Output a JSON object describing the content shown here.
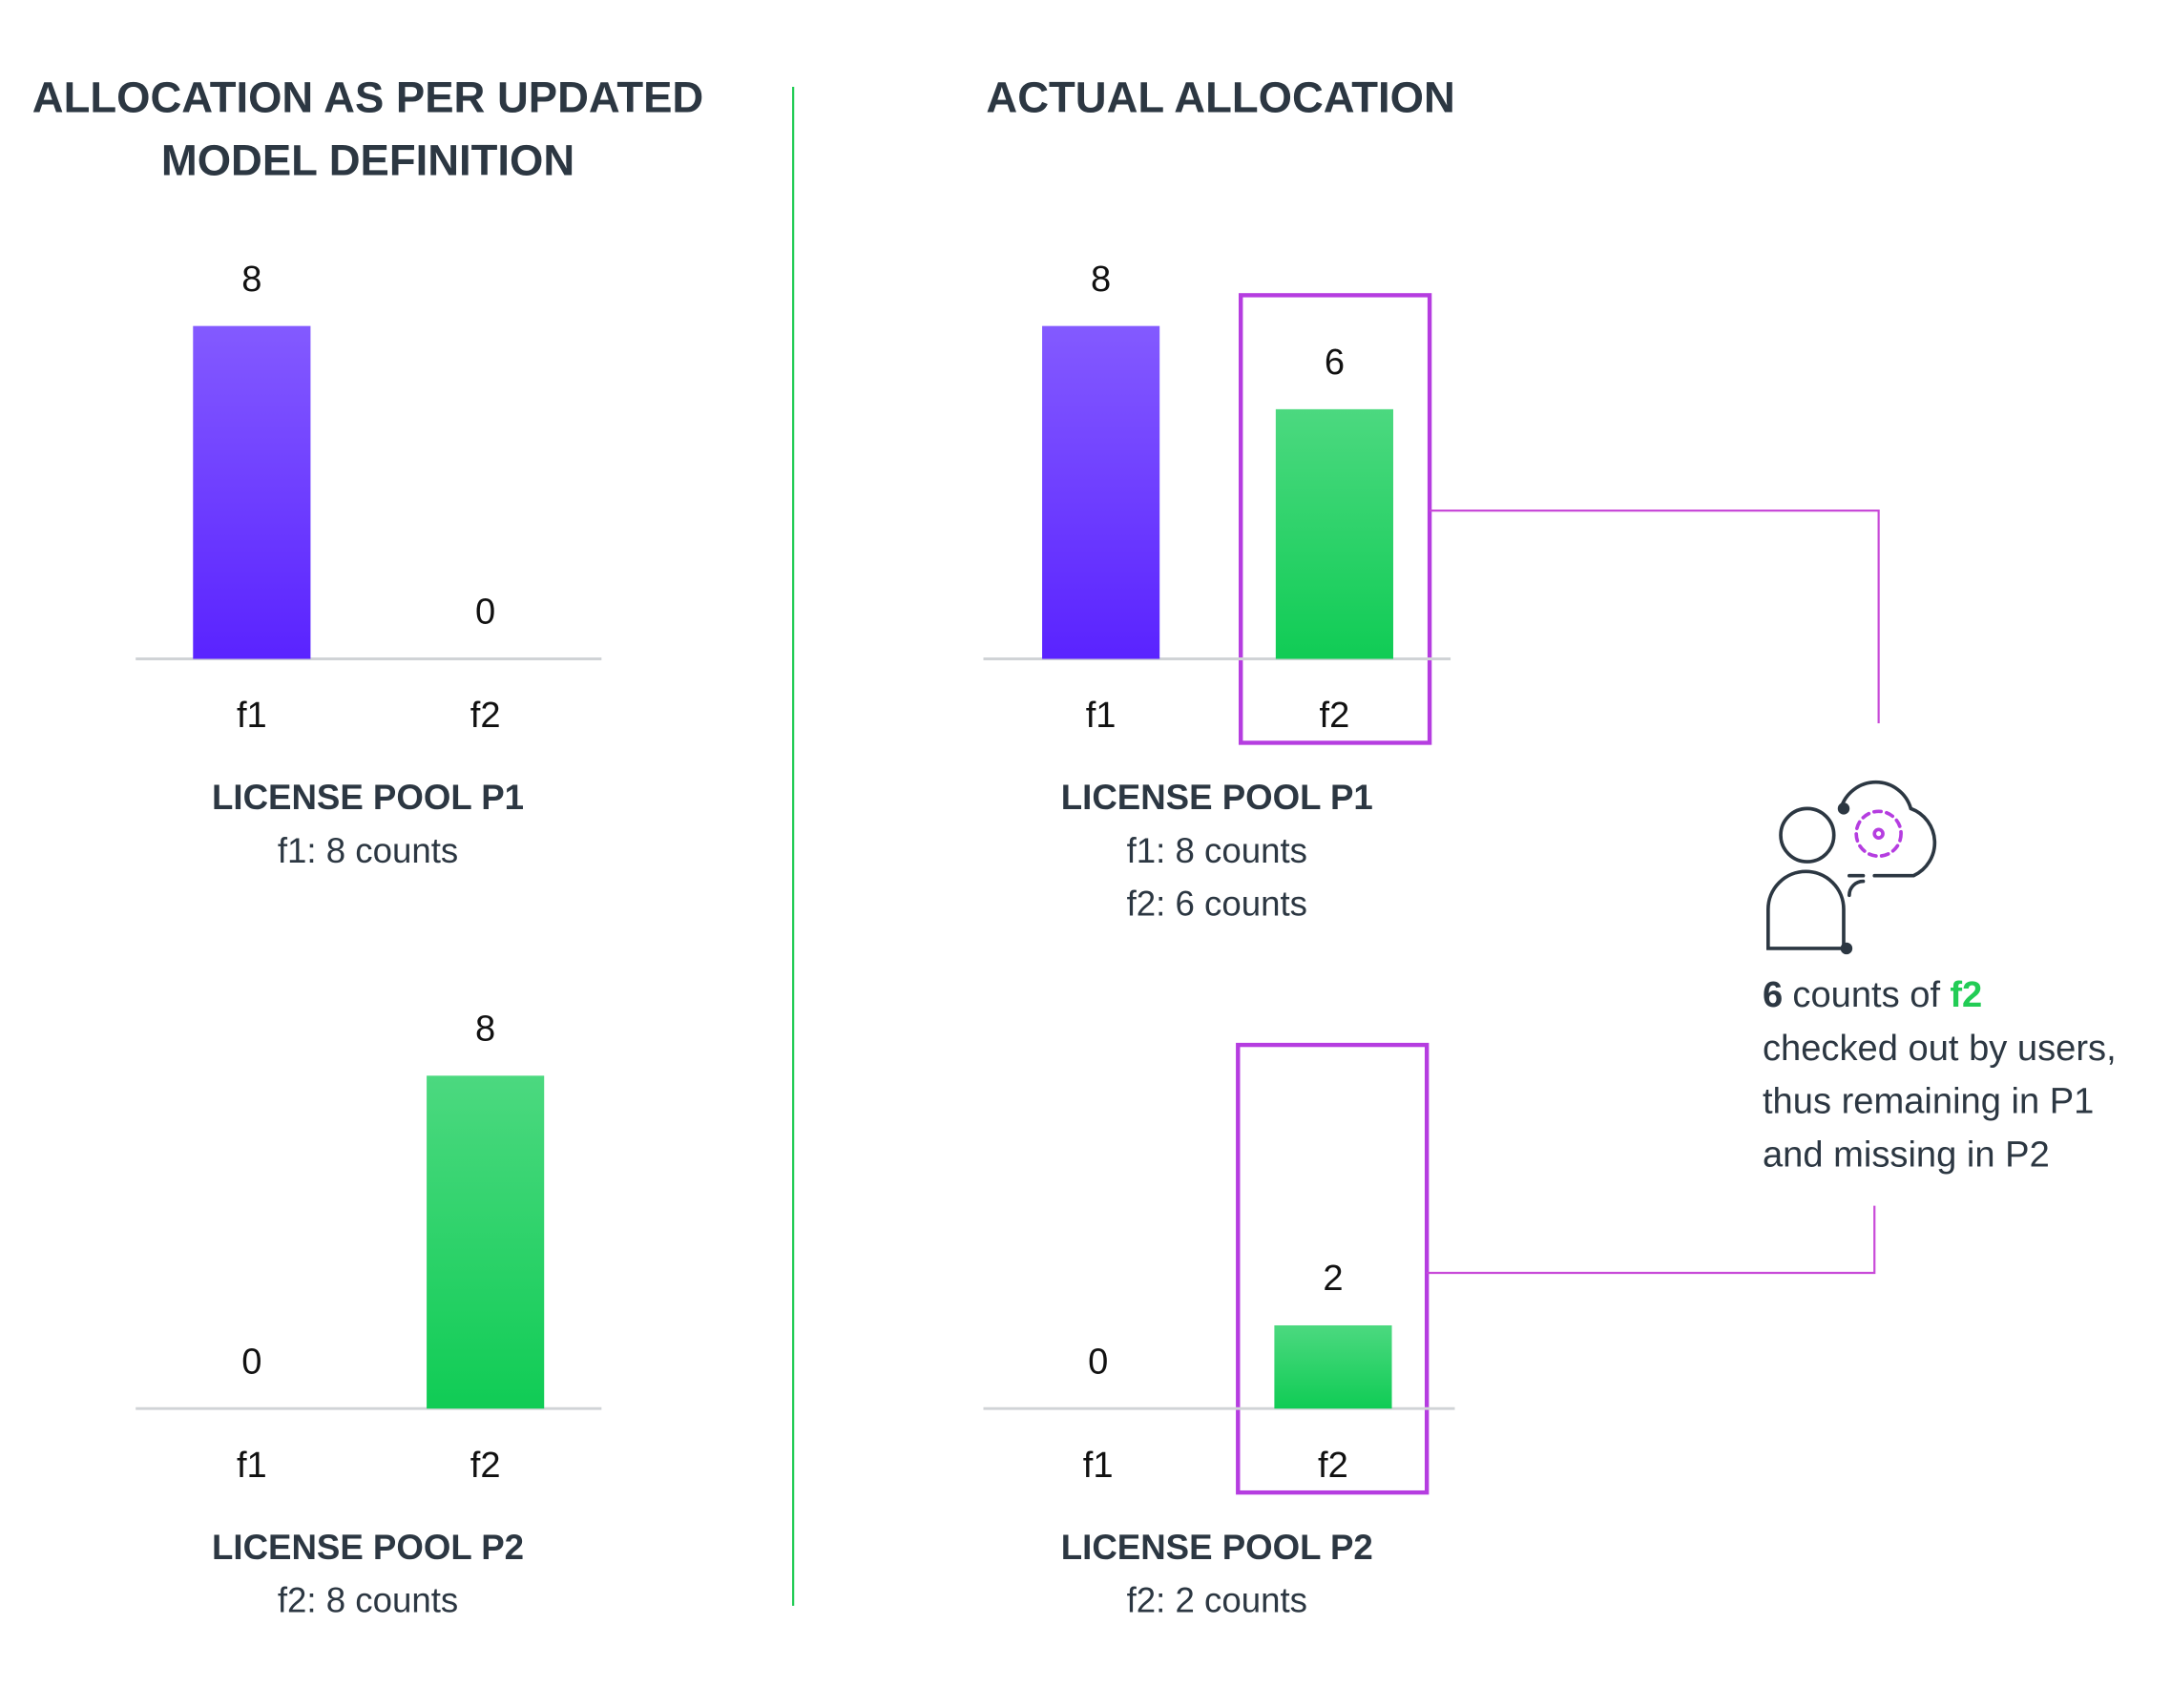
{
  "left_title": [
    "ALLOCATION AS PER UPDATED",
    "MODEL DEFINITION"
  ],
  "right_title": "ACTUAL ALLOCATION",
  "chart_data": [
    {
      "type": "bar",
      "title": "LICENSE POOL P1",
      "subtitle": [
        "f1: 8 counts"
      ],
      "categories": [
        "f1",
        "f2"
      ],
      "values": [
        8,
        0
      ],
      "colors": [
        "#5a23ff",
        "#10cc55"
      ]
    },
    {
      "type": "bar",
      "title": "LICENSE POOL P2",
      "subtitle": [
        "f2: 8 counts"
      ],
      "categories": [
        "f1",
        "f2"
      ],
      "values": [
        0,
        8
      ],
      "colors": [
        "#5a23ff",
        "#10cc55"
      ]
    },
    {
      "type": "bar",
      "title": "LICENSE POOL P1",
      "subtitle": [
        "f1: 8 counts",
        "f2: 6 counts"
      ],
      "categories": [
        "f1",
        "f2"
      ],
      "values": [
        8,
        6
      ],
      "colors": [
        "#5a23ff",
        "#10cc55"
      ]
    },
    {
      "type": "bar",
      "title": "LICENSE POOL P2",
      "subtitle": [
        "f2: 2 counts"
      ],
      "categories": [
        "f1",
        "f2"
      ],
      "values": [
        0,
        2
      ],
      "colors": [
        "#5a23ff",
        "#10cc55"
      ]
    }
  ],
  "annotation": {
    "count": "6",
    "text": "counts of",
    "feature": "f2",
    "feature_color": "#22cc55",
    "lines": [
      "checked out by users,",
      "thus remaining in P1",
      "and missing in P2"
    ]
  }
}
